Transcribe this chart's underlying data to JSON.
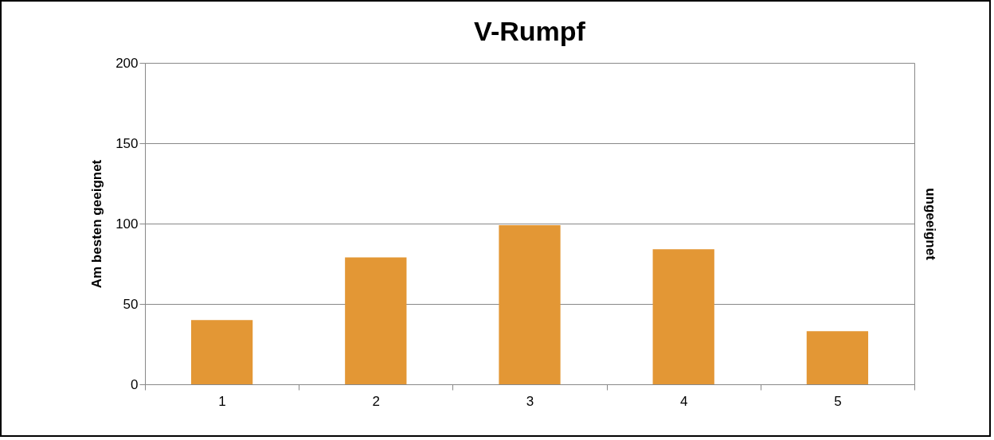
{
  "chart_data": {
    "type": "bar",
    "title": "V-Rumpf",
    "ylabel": "Am besten geeignet",
    "y2label": "ungeeignet",
    "categories": [
      "1",
      "2",
      "3",
      "4",
      "5"
    ],
    "series": [
      {
        "color": "#e39735",
        "values": [
          40,
          79,
          99,
          84,
          33
        ]
      }
    ],
    "ylim": [
      0,
      200
    ],
    "yticks": [
      0,
      50,
      100,
      150,
      200
    ],
    "grid": "y",
    "legend": false
  }
}
